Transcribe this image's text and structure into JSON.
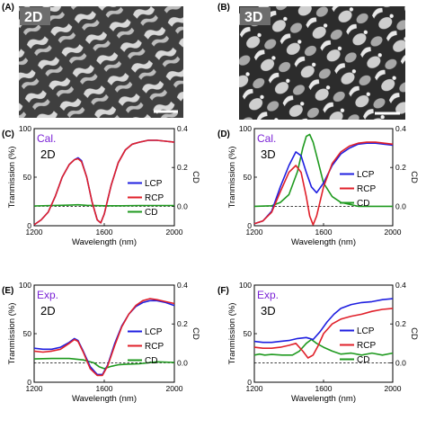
{
  "sem": {
    "left": {
      "panel_label": "(A)",
      "tag": "2D"
    },
    "right": {
      "panel_label": "(B)",
      "tag": "3D"
    }
  },
  "colors": {
    "lcp": "#1f1fe0",
    "rcp": "#e0202a",
    "cd": "#1f9a1f",
    "tag": "#7b22d6"
  },
  "legend": {
    "lcp": "LCP",
    "rcp": "RCP",
    "cd": "CD"
  },
  "axes": {
    "xlabel": "Wavelength (nm)",
    "ylabel": "Tranmission (%)",
    "y2label": "CD",
    "x_ticks": [
      "1200",
      "1600",
      "2000"
    ],
    "y_ticks": [
      "0",
      "50",
      "100"
    ],
    "y2_ticks": [
      "0.0",
      "0.2",
      "0.4"
    ]
  },
  "chart_data": [
    {
      "type": "line",
      "panel_label": "(C)",
      "tag": "Cal.",
      "dim": "2D",
      "xlim": [
        1200,
        2000
      ],
      "ylim": [
        0,
        100
      ],
      "y2lim": [
        -0.1,
        0.4
      ],
      "series": [
        {
          "name": "LCP",
          "axis": "left",
          "x": [
            1200,
            1240,
            1280,
            1320,
            1360,
            1400,
            1430,
            1450,
            1470,
            1500,
            1530,
            1560,
            1580,
            1600,
            1640,
            1680,
            1720,
            1760,
            1800,
            1850,
            1900,
            1950,
            2000
          ],
          "y": [
            1,
            6,
            14,
            30,
            50,
            63,
            68,
            70,
            67,
            50,
            25,
            6,
            3,
            12,
            42,
            65,
            78,
            84,
            86,
            88,
            88,
            87,
            86
          ]
        },
        {
          "name": "RCP",
          "axis": "left",
          "x": [
            1200,
            1240,
            1280,
            1320,
            1360,
            1400,
            1430,
            1450,
            1470,
            1500,
            1530,
            1560,
            1580,
            1600,
            1640,
            1680,
            1720,
            1760,
            1800,
            1850,
            1900,
            1950,
            2000
          ],
          "y": [
            1,
            6,
            14,
            30,
            50,
            63,
            68,
            69,
            66,
            50,
            25,
            6,
            3,
            12,
            42,
            65,
            78,
            84,
            86,
            88,
            88,
            87,
            86
          ]
        },
        {
          "name": "CD",
          "axis": "right",
          "x": [
            1200,
            1300,
            1400,
            1450,
            1500,
            1600,
            1700,
            1800,
            1900,
            2000
          ],
          "y": [
            0.002,
            0.004,
            0.006,
            0.008,
            0.005,
            0.003,
            0.003,
            0.004,
            0.004,
            0.004
          ]
        }
      ],
      "zero_line": 0
    },
    {
      "type": "line",
      "panel_label": "(D)",
      "tag": "Cal.",
      "dim": "3D",
      "xlim": [
        1200,
        2000
      ],
      "ylim": [
        0,
        100
      ],
      "y2lim": [
        -0.1,
        0.4
      ],
      "series": [
        {
          "name": "LCP",
          "axis": "left",
          "x": [
            1200,
            1250,
            1300,
            1350,
            1400,
            1440,
            1470,
            1500,
            1530,
            1560,
            1600,
            1650,
            1700,
            1750,
            1800,
            1850,
            1900,
            1950,
            2000
          ],
          "y": [
            2,
            5,
            15,
            40,
            62,
            76,
            72,
            55,
            40,
            34,
            44,
            62,
            74,
            80,
            84,
            85,
            85,
            84,
            83
          ]
        },
        {
          "name": "RCP",
          "axis": "left",
          "x": [
            1200,
            1250,
            1300,
            1350,
            1400,
            1440,
            1470,
            1500,
            1520,
            1540,
            1560,
            1600,
            1650,
            1700,
            1750,
            1800,
            1850,
            1900,
            1950,
            2000
          ],
          "y": [
            2,
            5,
            14,
            35,
            55,
            62,
            55,
            30,
            10,
            1,
            10,
            40,
            64,
            76,
            82,
            85,
            86,
            86,
            85,
            84
          ]
        },
        {
          "name": "CD",
          "axis": "right",
          "x": [
            1200,
            1300,
            1350,
            1400,
            1450,
            1480,
            1500,
            1520,
            1540,
            1560,
            1600,
            1650,
            1700,
            1800,
            1900,
            2000
          ],
          "y": [
            0.0,
            0.003,
            0.02,
            0.06,
            0.18,
            0.3,
            0.36,
            0.37,
            0.33,
            0.26,
            0.12,
            0.05,
            0.02,
            0.0,
            0.0,
            0.0
          ]
        }
      ],
      "zero_line": 0
    },
    {
      "type": "line",
      "panel_label": "(E)",
      "tag": "Exp.",
      "dim": "2D",
      "xlim": [
        1200,
        2000
      ],
      "ylim": [
        0,
        100
      ],
      "y2lim": [
        -0.1,
        0.4
      ],
      "series": [
        {
          "name": "LCP",
          "axis": "left",
          "x": [
            1200,
            1250,
            1300,
            1350,
            1400,
            1430,
            1450,
            1480,
            1520,
            1560,
            1590,
            1620,
            1660,
            1700,
            1740,
            1780,
            1820,
            1860,
            1900,
            1950,
            2000
          ],
          "y": [
            35,
            34,
            34,
            36,
            41,
            45,
            43,
            32,
            16,
            8,
            8,
            18,
            40,
            58,
            70,
            78,
            82,
            84,
            84,
            82,
            79
          ]
        },
        {
          "name": "RCP",
          "axis": "left",
          "x": [
            1200,
            1250,
            1300,
            1350,
            1400,
            1430,
            1450,
            1480,
            1520,
            1560,
            1590,
            1620,
            1660,
            1700,
            1740,
            1780,
            1820,
            1860,
            1900,
            1950,
            2000
          ],
          "y": [
            32,
            31,
            32,
            34,
            40,
            44,
            42,
            31,
            14,
            7,
            7,
            17,
            38,
            57,
            70,
            79,
            84,
            86,
            85,
            83,
            81
          ]
        },
        {
          "name": "CD",
          "axis": "right",
          "x": [
            1200,
            1300,
            1400,
            1480,
            1540,
            1570,
            1600,
            1640,
            1680,
            1720,
            1800,
            1900,
            2000
          ],
          "y": [
            0.02,
            0.022,
            0.022,
            0.015,
            0.0,
            -0.02,
            -0.03,
            -0.018,
            -0.01,
            -0.008,
            -0.005,
            0.005,
            0.002
          ]
        }
      ],
      "zero_line": 0
    },
    {
      "type": "line",
      "panel_label": "(F)",
      "tag": "Exp.",
      "dim": "3D",
      "xlim": [
        1200,
        2000
      ],
      "ylim": [
        0,
        100
      ],
      "y2lim": [
        -0.1,
        0.4
      ],
      "series": [
        {
          "name": "LCP",
          "axis": "left",
          "x": [
            1200,
            1250,
            1300,
            1350,
            1400,
            1450,
            1500,
            1540,
            1580,
            1620,
            1660,
            1700,
            1760,
            1820,
            1880,
            1940,
            2000
          ],
          "y": [
            42,
            41,
            41,
            42,
            43,
            45,
            46,
            44,
            52,
            62,
            70,
            76,
            80,
            82,
            83,
            85,
            86
          ]
        },
        {
          "name": "RCP",
          "axis": "left",
          "x": [
            1200,
            1250,
            1300,
            1350,
            1400,
            1440,
            1480,
            1510,
            1540,
            1570,
            1600,
            1650,
            1700,
            1760,
            1820,
            1880,
            1940,
            2000
          ],
          "y": [
            36,
            35,
            35,
            36,
            38,
            40,
            32,
            25,
            28,
            38,
            50,
            60,
            65,
            68,
            70,
            73,
            75,
            76
          ]
        },
        {
          "name": "CD",
          "axis": "right",
          "x": [
            1200,
            1230,
            1260,
            1300,
            1360,
            1420,
            1460,
            1500,
            1530,
            1560,
            1600,
            1650,
            1700,
            1760,
            1820,
            1880,
            1940,
            2000
          ],
          "y": [
            0.04,
            0.045,
            0.04,
            0.043,
            0.04,
            0.04,
            0.06,
            0.1,
            0.12,
            0.1,
            0.08,
            0.06,
            0.045,
            0.05,
            0.04,
            0.05,
            0.04,
            0.05
          ]
        }
      ],
      "zero_line": 0
    }
  ]
}
